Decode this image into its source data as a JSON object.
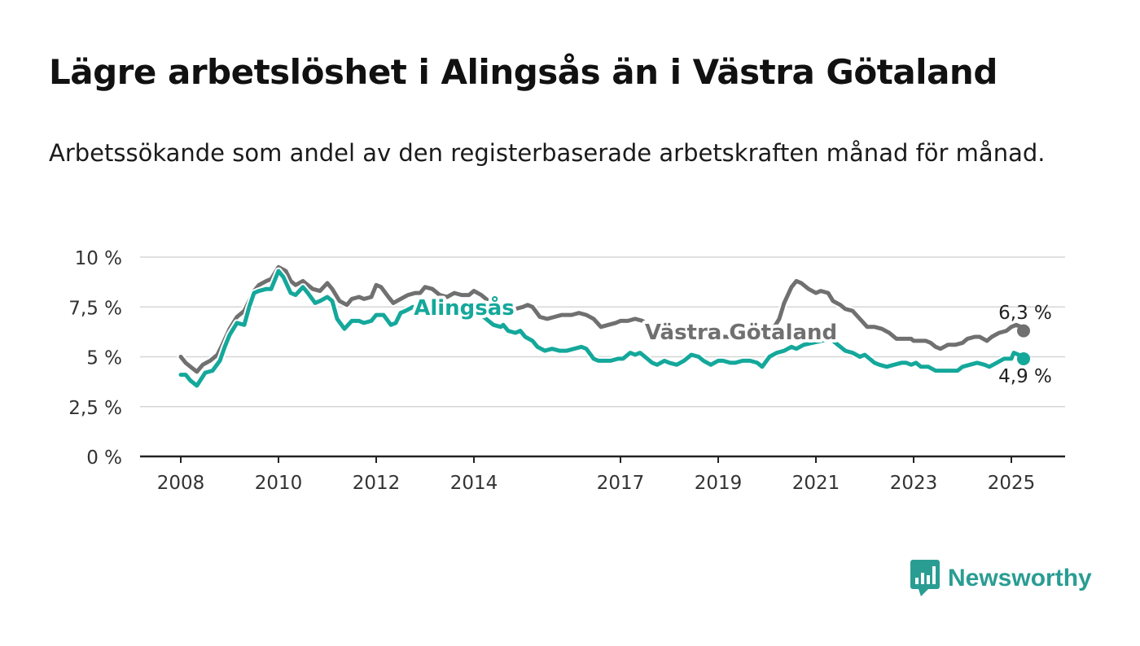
{
  "title": "Lägre arbetslöshet i Alingsås än i Västra Götaland",
  "subtitle": "Arbetssökande som andel av den registerbaserade arbetskraften månad för månad.",
  "brand": {
    "name": "Newsworthy",
    "icon": "newsworthy-logo-icon",
    "color": "#2a9d93"
  },
  "chart_data": {
    "type": "line",
    "title": "Lägre arbetslöshet i Alingsås än i Västra Götaland",
    "subtitle": "Arbetssökande som andel av den registerbaserade arbetskraften månad för månad.",
    "x_ticks": [
      "2008",
      "2010",
      "2012",
      "2014",
      "2017",
      "2019",
      "2021",
      "2023",
      "2025"
    ],
    "x_tick_values": [
      2008,
      2010,
      2012,
      2014,
      2017,
      2019,
      2021,
      2023,
      2025
    ],
    "y_ticks": [
      "0 %",
      "2,5 %",
      "5 %",
      "7,5 %",
      "10 %"
    ],
    "y_tick_values": [
      0,
      2.5,
      5,
      7.5,
      10
    ],
    "ylim": [
      0,
      10
    ],
    "xlim": [
      2007.2,
      2026.1
    ],
    "grid": true,
    "legend": "inline labels",
    "series": [
      {
        "name": "Västra Götaland",
        "color": "#707070",
        "end_label": "6,3 %",
        "points": [
          [
            2008.0,
            5.0
          ],
          [
            2008.1,
            4.7
          ],
          [
            2008.2,
            4.5
          ],
          [
            2008.33,
            4.25
          ],
          [
            2008.45,
            4.6
          ],
          [
            2008.6,
            4.8
          ],
          [
            2008.75,
            5.1
          ],
          [
            2008.85,
            5.6
          ],
          [
            2009.0,
            6.4
          ],
          [
            2009.15,
            7.0
          ],
          [
            2009.3,
            7.3
          ],
          [
            2009.4,
            7.8
          ],
          [
            2009.5,
            8.3
          ],
          [
            2009.6,
            8.6
          ],
          [
            2009.75,
            8.8
          ],
          [
            2009.85,
            8.9
          ],
          [
            2010.0,
            9.5
          ],
          [
            2010.15,
            9.3
          ],
          [
            2010.25,
            8.8
          ],
          [
            2010.35,
            8.6
          ],
          [
            2010.5,
            8.8
          ],
          [
            2010.6,
            8.6
          ],
          [
            2010.7,
            8.4
          ],
          [
            2010.85,
            8.3
          ],
          [
            2011.0,
            8.7
          ],
          [
            2011.1,
            8.4
          ],
          [
            2011.25,
            7.8
          ],
          [
            2011.4,
            7.6
          ],
          [
            2011.5,
            7.9
          ],
          [
            2011.65,
            8.0
          ],
          [
            2011.75,
            7.9
          ],
          [
            2011.9,
            8.0
          ],
          [
            2012.0,
            8.6
          ],
          [
            2012.1,
            8.5
          ],
          [
            2012.25,
            8.0
          ],
          [
            2012.35,
            7.7
          ],
          [
            2012.5,
            7.9
          ],
          [
            2012.65,
            8.1
          ],
          [
            2012.8,
            8.2
          ],
          [
            2012.9,
            8.2
          ],
          [
            2013.0,
            8.5
          ],
          [
            2013.15,
            8.4
          ],
          [
            2013.3,
            8.1
          ],
          [
            2013.45,
            8.0
          ],
          [
            2013.6,
            8.2
          ],
          [
            2013.75,
            8.1
          ],
          [
            2013.9,
            8.1
          ],
          [
            2014.0,
            8.3
          ],
          [
            2014.15,
            8.1
          ],
          [
            2014.3,
            7.8
          ],
          [
            2014.45,
            7.7
          ],
          [
            2014.6,
            7.6
          ],
          [
            2014.75,
            7.4
          ],
          [
            2014.85,
            7.4
          ],
          [
            2015.0,
            7.5
          ],
          [
            2015.1,
            7.6
          ],
          [
            2015.2,
            7.5
          ],
          [
            2015.35,
            7.0
          ],
          [
            2015.5,
            6.9
          ],
          [
            2015.65,
            7.0
          ],
          [
            2015.8,
            7.1
          ],
          [
            2016.0,
            7.1
          ],
          [
            2016.15,
            7.2
          ],
          [
            2016.3,
            7.1
          ],
          [
            2016.45,
            6.9
          ],
          [
            2016.6,
            6.5
          ],
          [
            2016.75,
            6.6
          ],
          [
            2016.9,
            6.7
          ],
          [
            2017.0,
            6.8
          ],
          [
            2017.15,
            6.8
          ],
          [
            2017.3,
            6.9
          ],
          [
            2017.45,
            6.8
          ],
          [
            2017.6,
            6.5
          ],
          [
            2017.75,
            6.3
          ],
          [
            2017.9,
            6.2
          ],
          [
            2018.1,
            6.3
          ],
          [
            2018.3,
            6.1
          ],
          [
            2018.45,
            6.1
          ],
          [
            2018.6,
            6.0
          ],
          [
            2018.75,
            6.0
          ],
          [
            2018.9,
            6.1
          ],
          [
            2019.1,
            6.0
          ],
          [
            2019.3,
            6.0
          ],
          [
            2019.45,
            6.0
          ],
          [
            2019.55,
            6.4
          ],
          [
            2019.7,
            6.5
          ],
          [
            2019.85,
            6.4
          ],
          [
            2020.0,
            6.5
          ],
          [
            2020.15,
            6.5
          ],
          [
            2020.25,
            6.9
          ],
          [
            2020.35,
            7.7
          ],
          [
            2020.5,
            8.5
          ],
          [
            2020.6,
            8.8
          ],
          [
            2020.7,
            8.7
          ],
          [
            2020.85,
            8.4
          ],
          [
            2021.0,
            8.2
          ],
          [
            2021.1,
            8.3
          ],
          [
            2021.25,
            8.2
          ],
          [
            2021.35,
            7.8
          ],
          [
            2021.5,
            7.6
          ],
          [
            2021.6,
            7.4
          ],
          [
            2021.75,
            7.3
          ],
          [
            2021.9,
            6.9
          ],
          [
            2022.05,
            6.5
          ],
          [
            2022.2,
            6.5
          ],
          [
            2022.35,
            6.4
          ],
          [
            2022.5,
            6.2
          ],
          [
            2022.65,
            5.9
          ],
          [
            2022.8,
            5.9
          ],
          [
            2022.95,
            5.9
          ],
          [
            2023.0,
            5.8
          ],
          [
            2023.15,
            5.8
          ],
          [
            2023.25,
            5.8
          ],
          [
            2023.35,
            5.7
          ],
          [
            2023.45,
            5.5
          ],
          [
            2023.55,
            5.4
          ],
          [
            2023.7,
            5.6
          ],
          [
            2023.85,
            5.6
          ],
          [
            2024.0,
            5.7
          ],
          [
            2024.1,
            5.9
          ],
          [
            2024.25,
            6.0
          ],
          [
            2024.35,
            6.0
          ],
          [
            2024.5,
            5.8
          ],
          [
            2024.6,
            6.0
          ],
          [
            2024.75,
            6.2
          ],
          [
            2024.9,
            6.3
          ],
          [
            2025.0,
            6.5
          ],
          [
            2025.1,
            6.6
          ],
          [
            2025.2,
            6.5
          ],
          [
            2025.25,
            6.3
          ]
        ]
      },
      {
        "name": "Alingsås",
        "color": "#14a89b",
        "end_label": "4,9 %",
        "points": [
          [
            2008.0,
            4.1
          ],
          [
            2008.1,
            4.1
          ],
          [
            2008.2,
            3.8
          ],
          [
            2008.33,
            3.55
          ],
          [
            2008.5,
            4.2
          ],
          [
            2008.65,
            4.3
          ],
          [
            2008.8,
            4.8
          ],
          [
            2008.9,
            5.5
          ],
          [
            2009.0,
            6.1
          ],
          [
            2009.15,
            6.7
          ],
          [
            2009.3,
            6.6
          ],
          [
            2009.4,
            7.5
          ],
          [
            2009.5,
            8.2
          ],
          [
            2009.6,
            8.3
          ],
          [
            2009.75,
            8.4
          ],
          [
            2009.85,
            8.4
          ],
          [
            2010.0,
            9.3
          ],
          [
            2010.1,
            9.0
          ],
          [
            2010.25,
            8.2
          ],
          [
            2010.35,
            8.1
          ],
          [
            2010.5,
            8.5
          ],
          [
            2010.6,
            8.2
          ],
          [
            2010.75,
            7.7
          ],
          [
            2010.85,
            7.8
          ],
          [
            2011.0,
            8.0
          ],
          [
            2011.1,
            7.8
          ],
          [
            2011.2,
            6.9
          ],
          [
            2011.35,
            6.4
          ],
          [
            2011.5,
            6.8
          ],
          [
            2011.65,
            6.8
          ],
          [
            2011.75,
            6.7
          ],
          [
            2011.9,
            6.8
          ],
          [
            2012.0,
            7.1
          ],
          [
            2012.15,
            7.1
          ],
          [
            2012.3,
            6.6
          ],
          [
            2012.4,
            6.7
          ],
          [
            2012.5,
            7.2
          ],
          [
            2012.6,
            7.3
          ],
          [
            2012.75,
            7.5
          ],
          [
            2014.1,
            7.2
          ],
          [
            2014.2,
            7.0
          ],
          [
            2014.3,
            6.8
          ],
          [
            2014.4,
            6.6
          ],
          [
            2014.55,
            6.5
          ],
          [
            2014.6,
            6.6
          ],
          [
            2014.7,
            6.3
          ],
          [
            2014.85,
            6.2
          ],
          [
            2014.95,
            6.3
          ],
          [
            2015.05,
            6.0
          ],
          [
            2015.2,
            5.8
          ],
          [
            2015.3,
            5.5
          ],
          [
            2015.45,
            5.3
          ],
          [
            2015.6,
            5.4
          ],
          [
            2015.75,
            5.3
          ],
          [
            2015.9,
            5.3
          ],
          [
            2016.05,
            5.4
          ],
          [
            2016.2,
            5.5
          ],
          [
            2016.3,
            5.4
          ],
          [
            2016.45,
            4.9
          ],
          [
            2016.55,
            4.8
          ],
          [
            2016.7,
            4.8
          ],
          [
            2016.8,
            4.8
          ],
          [
            2016.95,
            4.9
          ],
          [
            2017.05,
            4.9
          ],
          [
            2017.2,
            5.2
          ],
          [
            2017.3,
            5.1
          ],
          [
            2017.4,
            5.2
          ],
          [
            2017.55,
            4.9
          ],
          [
            2017.65,
            4.7
          ],
          [
            2017.75,
            4.6
          ],
          [
            2017.9,
            4.8
          ],
          [
            2018.0,
            4.7
          ],
          [
            2018.15,
            4.6
          ],
          [
            2018.3,
            4.8
          ],
          [
            2018.45,
            5.1
          ],
          [
            2018.6,
            5.0
          ],
          [
            2018.7,
            4.8
          ],
          [
            2018.85,
            4.6
          ],
          [
            2019.0,
            4.8
          ],
          [
            2019.1,
            4.8
          ],
          [
            2019.25,
            4.7
          ],
          [
            2019.35,
            4.7
          ],
          [
            2019.5,
            4.8
          ],
          [
            2019.65,
            4.8
          ],
          [
            2019.8,
            4.7
          ],
          [
            2019.9,
            4.5
          ],
          [
            2020.05,
            5.0
          ],
          [
            2020.2,
            5.2
          ],
          [
            2020.35,
            5.3
          ],
          [
            2020.5,
            5.5
          ],
          [
            2020.6,
            5.4
          ],
          [
            2020.75,
            5.6
          ],
          [
            2021.3,
            5.9
          ],
          [
            2021.45,
            5.6
          ],
          [
            2021.6,
            5.3
          ],
          [
            2021.75,
            5.2
          ],
          [
            2021.9,
            5.0
          ],
          [
            2022.0,
            5.1
          ],
          [
            2022.1,
            4.9
          ],
          [
            2022.2,
            4.7
          ],
          [
            2022.3,
            4.6
          ],
          [
            2022.45,
            4.5
          ],
          [
            2022.6,
            4.6
          ],
          [
            2022.75,
            4.7
          ],
          [
            2022.85,
            4.7
          ],
          [
            2022.95,
            4.6
          ],
          [
            2023.05,
            4.7
          ],
          [
            2023.15,
            4.5
          ],
          [
            2023.3,
            4.5
          ],
          [
            2023.45,
            4.3
          ],
          [
            2023.6,
            4.3
          ],
          [
            2023.75,
            4.3
          ],
          [
            2023.9,
            4.3
          ],
          [
            2024.0,
            4.5
          ],
          [
            2024.15,
            4.6
          ],
          [
            2024.3,
            4.7
          ],
          [
            2024.45,
            4.6
          ],
          [
            2024.55,
            4.5
          ],
          [
            2024.7,
            4.7
          ],
          [
            2024.85,
            4.9
          ],
          [
            2025.0,
            4.9
          ],
          [
            2025.05,
            5.2
          ],
          [
            2025.15,
            5.1
          ],
          [
            2025.25,
            4.9
          ]
        ]
      }
    ]
  }
}
